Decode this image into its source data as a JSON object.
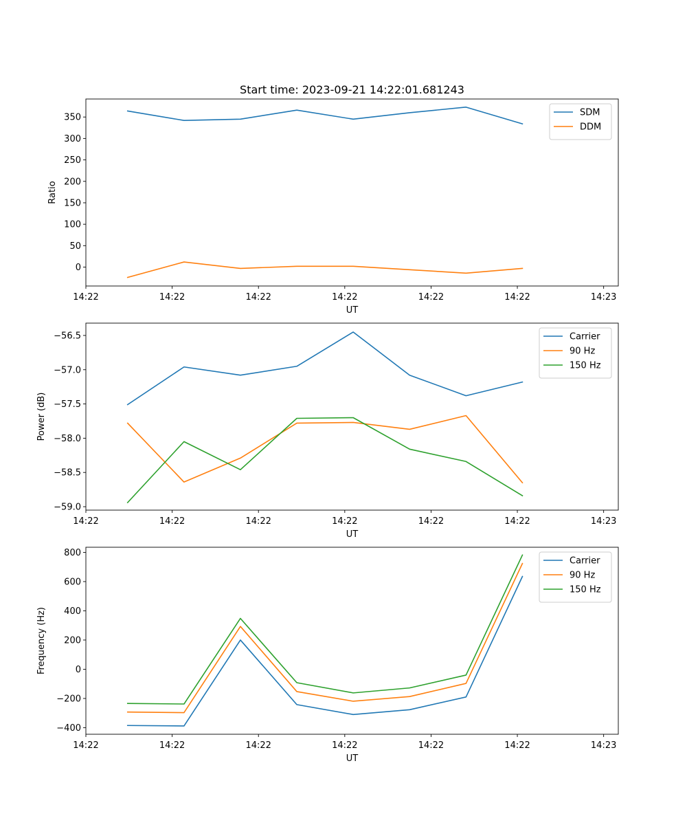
{
  "chart_data": [
    {
      "type": "line",
      "title": "Start time: 2023-09-21 14:22:01.681243",
      "xlabel": "UT",
      "ylabel": "Ratio",
      "x": [
        0,
        1,
        2,
        3,
        4,
        5,
        6,
        7
      ],
      "xlim": [
        -0.74,
        8.7
      ],
      "ylim": [
        -44,
        392
      ],
      "yticks": [
        0,
        50,
        100,
        150,
        200,
        250,
        300,
        350
      ],
      "ytick_labels": [
        "0",
        "50",
        "100",
        "150",
        "200",
        "250",
        "300",
        "350"
      ],
      "xticks": [
        -0.74,
        0.79,
        2.32,
        3.85,
        5.38,
        6.91,
        8.44
      ],
      "xtick_labels": [
        "14:22",
        "14:22",
        "14:22",
        "14:22",
        "14:22",
        "14:22",
        "14:23"
      ],
      "legend_position": "top-right",
      "series": [
        {
          "name": "SDM",
          "color": "#1f77b4",
          "values": [
            364,
            342,
            345,
            366,
            345,
            360,
            373,
            334
          ]
        },
        {
          "name": "DDM",
          "color": "#ff7f0e",
          "values": [
            -24,
            12,
            -3,
            2,
            2,
            -6,
            -14,
            -3
          ]
        }
      ]
    },
    {
      "type": "line",
      "title": "",
      "xlabel": "UT",
      "ylabel": "Power (dB)",
      "x": [
        0,
        1,
        2,
        3,
        4,
        5,
        6,
        7
      ],
      "xlim": [
        -0.74,
        8.7
      ],
      "ylim": [
        -59.05,
        -56.32
      ],
      "yticks": [
        -59.0,
        -58.5,
        -58.0,
        -57.5,
        -57.0,
        -56.5
      ],
      "ytick_labels": [
        "−59.0",
        "−58.5",
        "−58.0",
        "−57.5",
        "−57.0",
        "−56.5"
      ],
      "xticks": [
        -0.74,
        0.79,
        2.32,
        3.85,
        5.38,
        6.91,
        8.44
      ],
      "xtick_labels": [
        "14:22",
        "14:22",
        "14:22",
        "14:22",
        "14:22",
        "14:22",
        "14:23"
      ],
      "legend_position": "top-right",
      "series": [
        {
          "name": "Carrier",
          "color": "#1f77b4",
          "values": [
            -57.51,
            -56.96,
            -57.08,
            -56.95,
            -56.45,
            -57.08,
            -57.38,
            -57.18
          ]
        },
        {
          "name": "90 Hz",
          "color": "#ff7f0e",
          "values": [
            -57.78,
            -58.64,
            -58.29,
            -57.78,
            -57.77,
            -57.87,
            -57.67,
            -58.65
          ]
        },
        {
          "name": "150 Hz",
          "color": "#2ca02c",
          "values": [
            -58.94,
            -58.05,
            -58.46,
            -57.71,
            -57.7,
            -58.16,
            -58.34,
            -58.84
          ]
        }
      ]
    },
    {
      "type": "line",
      "title": "",
      "xlabel": "UT",
      "ylabel": "Frequency (Hz)",
      "x": [
        0,
        1,
        2,
        3,
        4,
        5,
        6,
        7
      ],
      "xlim": [
        -0.74,
        8.7
      ],
      "ylim": [
        -445,
        835
      ],
      "yticks": [
        -400,
        -200,
        0,
        200,
        400,
        600,
        800
      ],
      "ytick_labels": [
        "−400",
        "−200",
        "0",
        "200",
        "400",
        "600",
        "800"
      ],
      "xticks": [
        -0.74,
        0.79,
        2.32,
        3.85,
        5.38,
        6.91,
        8.44
      ],
      "xtick_labels": [
        "14:22",
        "14:22",
        "14:22",
        "14:22",
        "14:22",
        "14:22",
        "14:23"
      ],
      "legend_position": "top-right",
      "series": [
        {
          "name": "Carrier",
          "color": "#1f77b4",
          "values": [
            -385,
            -388,
            200,
            -242,
            -310,
            -277,
            -190,
            635
          ]
        },
        {
          "name": "90 Hz",
          "color": "#ff7f0e",
          "values": [
            -293,
            -297,
            293,
            -153,
            -219,
            -187,
            -97,
            724
          ]
        },
        {
          "name": "150 Hz",
          "color": "#2ca02c",
          "values": [
            -234,
            -238,
            348,
            -92,
            -162,
            -128,
            -40,
            782
          ]
        }
      ]
    }
  ]
}
